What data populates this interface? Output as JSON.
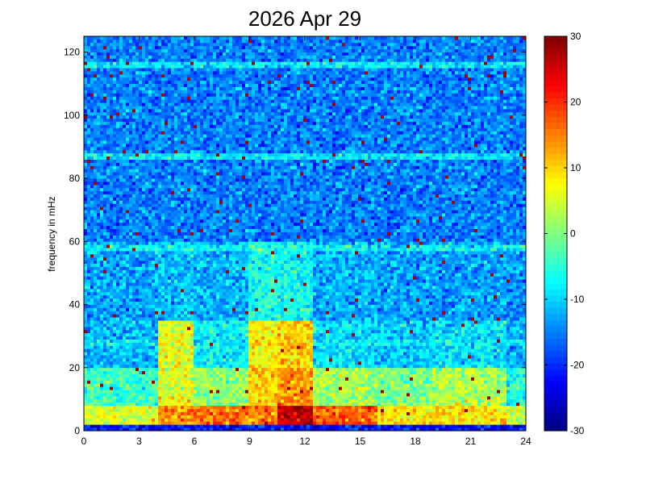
{
  "chart_data": {
    "type": "heatmap",
    "title": "2026 Apr 29",
    "xlabel": "",
    "ylabel": "frequency in mHz",
    "xlim": [
      0,
      24
    ],
    "ylim": [
      0,
      125
    ],
    "xticks": [
      0,
      3,
      6,
      9,
      12,
      15,
      18,
      21,
      24
    ],
    "yticks": [
      0,
      20,
      40,
      60,
      80,
      100,
      120
    ],
    "colormap": "jet",
    "clim": [
      -30,
      30
    ],
    "colorbar_ticks": [
      -30,
      -20,
      -10,
      0,
      10,
      20,
      30
    ],
    "colorbar_position": "right",
    "approx_band_levels": {
      "time_bins_hours": [
        [
          0,
          4
        ],
        [
          4,
          6
        ],
        [
          6,
          9
        ],
        [
          9,
          10.5
        ],
        [
          10.5,
          12.5
        ],
        [
          12.5,
          16
        ],
        [
          16,
          19
        ],
        [
          19,
          23
        ],
        [
          23,
          24
        ]
      ],
      "bands": [
        {
          "freq_mHz": [
            0,
            2
          ],
          "values": [
            -22,
            -22,
            -22,
            -22,
            -22,
            -22,
            -22,
            -22,
            -24
          ]
        },
        {
          "freq_mHz": [
            2,
            8
          ],
          "values": [
            6,
            14,
            16,
            15,
            26,
            17,
            9,
            9,
            4
          ]
        },
        {
          "freq_mHz": [
            8,
            20
          ],
          "values": [
            -4,
            6,
            1,
            10,
            14,
            2,
            0,
            3,
            -6
          ]
        },
        {
          "freq_mHz": [
            20,
            35
          ],
          "values": [
            -12,
            6,
            -8,
            8,
            10,
            -9,
            -11,
            -9,
            -12
          ]
        },
        {
          "freq_mHz": [
            35,
            60
          ],
          "values": [
            -13,
            -11,
            -12,
            -6,
            -7,
            -12,
            -13,
            -13,
            -14
          ]
        },
        {
          "freq_mHz": [
            60,
            125
          ],
          "values": [
            -15,
            -15,
            -15,
            -15,
            -15,
            -15,
            -15,
            -15,
            -15
          ]
        }
      ],
      "horizontal_lines_mHz": [
        28,
        58,
        87,
        116
      ],
      "horizontal_line_level": -8
    }
  }
}
